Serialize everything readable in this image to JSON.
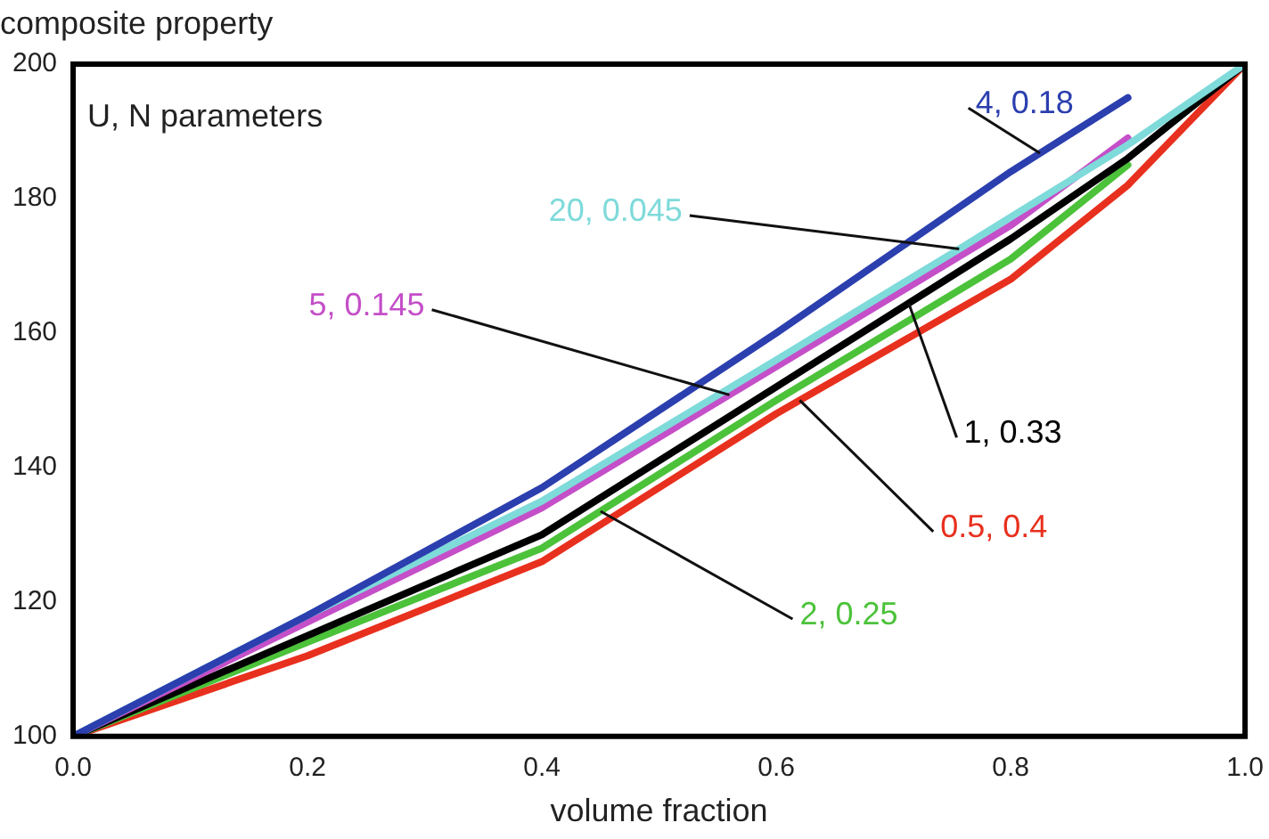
{
  "chart_data": {
    "type": "line",
    "xlabel": "volume fraction",
    "ylabel": "composite property",
    "annotations": [
      "U, N parameters"
    ],
    "xlim": [
      0,
      1
    ],
    "xticks": [
      {
        "value": 0,
        "label": "0.0"
      },
      0.2,
      0.4,
      0.6,
      0.8,
      {
        "value": 1,
        "label": "1.0"
      }
    ],
    "ylim": [
      100,
      200
    ],
    "yticks": [
      100,
      120,
      140,
      160,
      180,
      200
    ],
    "grid": false,
    "legend": false,
    "marker": "none",
    "line_style": "solid",
    "series": [
      {
        "name": "4, 0.18",
        "color": "#2b3fae",
        "x": [
          0,
          0.2,
          0.4,
          0.6,
          0.8,
          0.9
        ],
        "values": [
          100,
          118,
          137,
          160,
          184,
          195
        ]
      },
      {
        "name": "20, 0.045",
        "color": "#7fdada",
        "x": [
          0,
          0.2,
          0.4,
          0.6,
          0.756,
          0.9,
          1
        ],
        "values": [
          100,
          118,
          135,
          156,
          172.5,
          188,
          200
        ]
      },
      {
        "name": "5, 0.145",
        "color": "#c44fc8",
        "x": [
          0,
          0.2,
          0.4,
          0.6,
          0.8,
          0.9
        ],
        "values": [
          100,
          117,
          134,
          155,
          176,
          189
        ]
      },
      {
        "name": "1, 0.33",
        "color": "#000000",
        "x": [
          0,
          0.2,
          0.4,
          0.6,
          0.8,
          0.9,
          1
        ],
        "values": [
          100,
          115,
          130,
          152,
          174,
          186,
          200
        ]
      },
      {
        "name": "2, 0.25",
        "color": "#4cc23a",
        "x": [
          0,
          0.2,
          0.4,
          0.6,
          0.8,
          0.9
        ],
        "values": [
          100,
          114,
          128,
          150,
          171,
          185
        ]
      },
      {
        "name": "0.5, 0.4",
        "color": "#e8301e",
        "x": [
          0,
          0.2,
          0.4,
          0.6,
          0.8,
          0.9,
          1
        ],
        "values": [
          100,
          112,
          126,
          148,
          168,
          182,
          200
        ]
      }
    ]
  }
}
